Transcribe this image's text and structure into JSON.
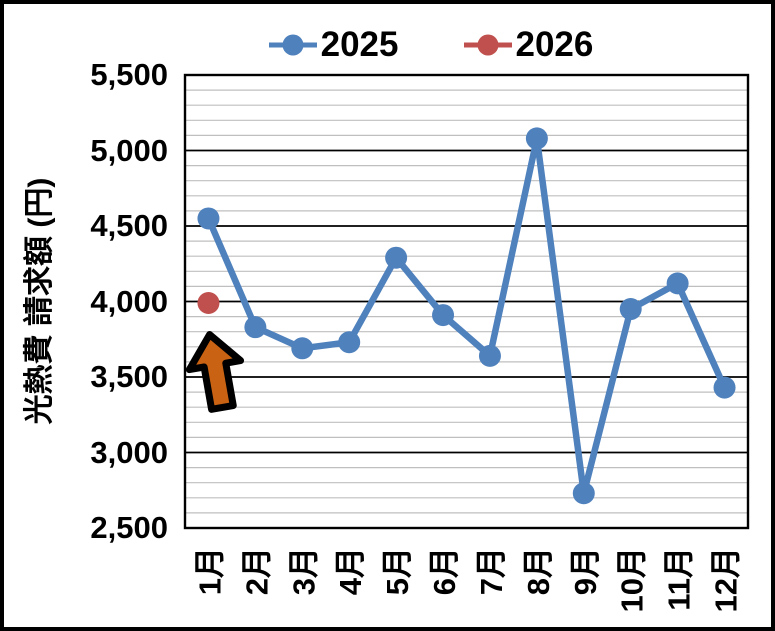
{
  "chart_data": {
    "type": "line",
    "title": "",
    "categories": [
      "1月",
      "2月",
      "3月",
      "4月",
      "5月",
      "6月",
      "7月",
      "8月",
      "9月",
      "10月",
      "11月",
      "12月"
    ],
    "series": [
      {
        "name": "2025",
        "color": "#4F81BD",
        "values": [
          4550,
          3830,
          3690,
          3730,
          4290,
          3910,
          3640,
          5080,
          2730,
          3950,
          4120,
          3430
        ]
      },
      {
        "name": "2026",
        "color": "#C0504D",
        "values": [
          3990,
          null,
          null,
          null,
          null,
          null,
          null,
          null,
          null,
          null,
          null,
          null
        ]
      }
    ],
    "xlabel": "",
    "ylabel": "光熱費 請求額 (円)",
    "ylim": [
      2500,
      5500
    ],
    "y_major_step": 500,
    "y_minor_step": 100,
    "y_tick_labels": [
      "5,500",
      "5,000",
      "4,500",
      "4,000",
      "3,500",
      "3,000",
      "2,500"
    ],
    "legend_position": "top",
    "grid": "horizontal major (black) + minor (gray)",
    "annotation": {
      "type": "up-arrow",
      "color": "#C96212",
      "outline": "#000000",
      "points_to": "2026 1月 data point"
    }
  }
}
